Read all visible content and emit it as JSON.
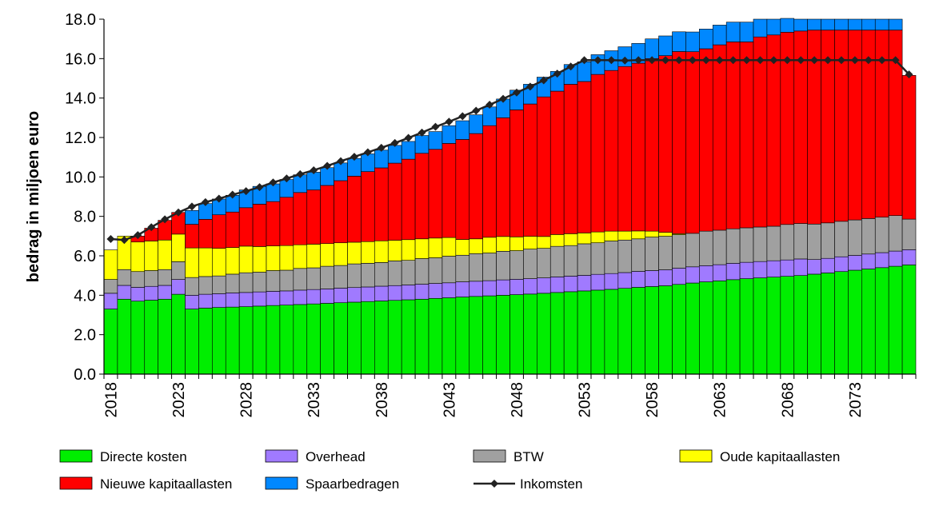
{
  "chart_data": {
    "type": "bar",
    "stacked": true,
    "title": "",
    "xlabel": "",
    "ylabel": "bedrag in miljoen euro",
    "ylim": [
      0,
      18
    ],
    "yticks": [
      "0.0",
      "2.0",
      "4.0",
      "6.0",
      "8.0",
      "10.0",
      "12.0",
      "14.0",
      "16.0",
      "18.0"
    ],
    "xticks": [
      "2018",
      "2023",
      "2028",
      "2033",
      "2038",
      "2043",
      "2048",
      "2053",
      "2058",
      "2063",
      "2068",
      "2073"
    ],
    "grid": false,
    "legend_position": "bottom",
    "categories": [
      2018,
      2019,
      2020,
      2021,
      2022,
      2023,
      2024,
      2025,
      2026,
      2027,
      2028,
      2029,
      2030,
      2031,
      2032,
      2033,
      2034,
      2035,
      2036,
      2037,
      2038,
      2039,
      2040,
      2041,
      2042,
      2043,
      2044,
      2045,
      2046,
      2047,
      2048,
      2049,
      2050,
      2051,
      2052,
      2053,
      2054,
      2055,
      2056,
      2057,
      2058,
      2059,
      2060,
      2061,
      2062,
      2063,
      2064,
      2065,
      2066,
      2067,
      2068,
      2069,
      2070,
      2071,
      2072,
      2073,
      2074,
      2075,
      2076,
      2077
    ],
    "series": [
      {
        "name": "Directe kosten",
        "color": "#00ee00",
        "values": [
          3.3,
          3.8,
          3.7,
          3.75,
          3.8,
          4.05,
          3.3,
          3.35,
          3.38,
          3.4,
          3.42,
          3.45,
          3.48,
          3.5,
          3.53,
          3.56,
          3.59,
          3.62,
          3.65,
          3.68,
          3.71,
          3.74,
          3.77,
          3.8,
          3.84,
          3.87,
          3.91,
          3.94,
          3.97,
          4.0,
          4.03,
          4.06,
          4.1,
          4.14,
          4.18,
          4.22,
          4.26,
          4.3,
          4.35,
          4.4,
          4.44,
          4.48,
          4.55,
          4.62,
          4.68,
          4.73,
          4.79,
          4.84,
          4.88,
          4.92,
          4.96,
          5.0,
          5.07,
          5.13,
          5.2,
          5.27,
          5.33,
          5.4,
          5.47,
          5.54
        ]
      },
      {
        "name": "Overhead",
        "color": "#a07aff",
        "values": [
          0.8,
          0.7,
          0.7,
          0.7,
          0.7,
          0.75,
          0.7,
          0.7,
          0.7,
          0.72,
          0.72,
          0.72,
          0.72,
          0.72,
          0.73,
          0.73,
          0.73,
          0.74,
          0.74,
          0.74,
          0.75,
          0.75,
          0.75,
          0.76,
          0.76,
          0.76,
          0.77,
          0.77,
          0.77,
          0.78,
          0.78,
          0.78,
          0.78,
          0.79,
          0.79,
          0.79,
          0.8,
          0.8,
          0.8,
          0.81,
          0.81,
          0.81,
          0.82,
          0.82,
          0.82,
          0.82,
          0.83,
          0.83,
          0.83,
          0.83,
          0.83,
          0.84,
          0.74,
          0.74,
          0.75,
          0.75,
          0.76,
          0.76,
          0.77,
          0.77
        ]
      },
      {
        "name": "BTW",
        "color": "#a0a0a0",
        "values": [
          0.7,
          0.8,
          0.8,
          0.8,
          0.8,
          0.9,
          0.9,
          0.9,
          0.9,
          0.95,
          1.0,
          1.0,
          1.05,
          1.05,
          1.1,
          1.1,
          1.15,
          1.15,
          1.2,
          1.2,
          1.2,
          1.25,
          1.25,
          1.3,
          1.3,
          1.35,
          1.35,
          1.4,
          1.4,
          1.45,
          1.45,
          1.5,
          1.5,
          1.55,
          1.55,
          1.6,
          1.6,
          1.65,
          1.65,
          1.65,
          1.7,
          1.7,
          1.7,
          1.7,
          1.75,
          1.75,
          1.75,
          1.75,
          1.75,
          1.75,
          1.8,
          1.8,
          1.8,
          1.8,
          1.8,
          1.8,
          1.8,
          1.8,
          1.8,
          1.55
        ]
      },
      {
        "name": "Oude kapitaallasten",
        "color": "#ffff00",
        "values": [
          1.5,
          1.7,
          1.5,
          1.5,
          1.5,
          1.4,
          1.5,
          1.45,
          1.4,
          1.35,
          1.35,
          1.3,
          1.25,
          1.25,
          1.2,
          1.2,
          1.15,
          1.15,
          1.1,
          1.1,
          1.1,
          1.05,
          1.05,
          1.0,
          1.0,
          0.95,
          0.8,
          0.75,
          0.8,
          0.75,
          0.7,
          0.65,
          0.6,
          0.6,
          0.6,
          0.55,
          0.55,
          0.5,
          0.45,
          0.4,
          0.3,
          0.2,
          0.05,
          0.0,
          0.0,
          0.0,
          0.0,
          0.0,
          0.0,
          0.0,
          0.0,
          0.0,
          0.0,
          0.0,
          0.0,
          0.0,
          0.0,
          0.0,
          0.0,
          0.0
        ]
      },
      {
        "name": "Nieuwe kapitaallasten",
        "color": "#ff0000",
        "values": [
          0.0,
          0.0,
          0.3,
          0.65,
          1.0,
          1.1,
          1.2,
          1.45,
          1.7,
          1.8,
          1.95,
          2.15,
          2.25,
          2.45,
          2.65,
          2.75,
          2.95,
          3.15,
          3.35,
          3.55,
          3.7,
          3.91,
          4.08,
          4.34,
          4.5,
          4.77,
          5.07,
          5.34,
          5.66,
          6.02,
          6.44,
          6.71,
          7.08,
          7.27,
          7.58,
          7.68,
          7.99,
          8.15,
          8.35,
          8.51,
          8.75,
          8.96,
          9.24,
          9.21,
          9.25,
          9.4,
          9.48,
          9.43,
          9.64,
          9.7,
          9.75,
          9.76,
          9.84,
          9.78,
          9.7,
          9.63,
          9.56,
          9.49,
          9.41,
          7.29
        ]
      },
      {
        "name": "Spaarbedragen",
        "color": "#0088ff",
        "values": [
          0.0,
          0.0,
          0.0,
          0.0,
          0.0,
          0.0,
          0.7,
          0.8,
          0.8,
          0.85,
          0.9,
          0.9,
          0.9,
          0.9,
          0.9,
          0.9,
          0.9,
          0.9,
          0.9,
          0.9,
          0.9,
          0.9,
          0.9,
          0.9,
          0.9,
          0.9,
          0.95,
          0.95,
          0.95,
          0.95,
          1.0,
          1.0,
          1.0,
          1.0,
          1.0,
          1.0,
          1.0,
          1.0,
          1.0,
          1.0,
          1.0,
          1.0,
          1.0,
          1.0,
          1.0,
          1.0,
          1.0,
          1.0,
          0.9,
          0.8,
          0.7,
          0.6,
          0.55,
          0.55,
          0.55,
          0.55,
          0.55,
          0.55,
          0.55,
          0.0
        ]
      }
    ],
    "line_series": {
      "name": "Inkomsten",
      "color": "#222222",
      "values": [
        6.85,
        6.8,
        7.05,
        7.45,
        7.85,
        8.2,
        8.5,
        8.72,
        8.9,
        9.1,
        9.28,
        9.48,
        9.72,
        9.92,
        10.14,
        10.34,
        10.56,
        10.8,
        11.02,
        11.25,
        11.48,
        11.72,
        11.98,
        12.25,
        12.54,
        12.8,
        13.08,
        13.36,
        13.66,
        13.96,
        14.28,
        14.58,
        14.9,
        15.24,
        15.6,
        15.92,
        15.92,
        15.92,
        15.9,
        15.92,
        15.92,
        15.92,
        15.92,
        15.92,
        15.92,
        15.92,
        15.92,
        15.92,
        15.92,
        15.92,
        15.92,
        15.92,
        15.92,
        15.92,
        15.92,
        15.92,
        15.92,
        15.92,
        15.92,
        15.2
      ]
    }
  }
}
